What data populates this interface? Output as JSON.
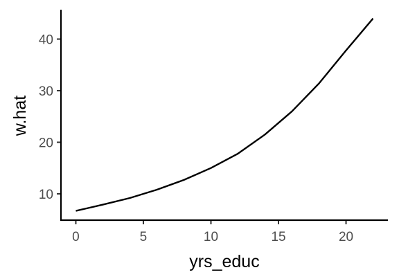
{
  "chart_data": {
    "type": "line",
    "title": "",
    "xlabel": "yrs_educ",
    "ylabel": "w.hat",
    "xlim": [
      -1.1,
      23.1
    ],
    "ylim": [
      4.9,
      45.7
    ],
    "x_ticks": [
      0,
      5,
      10,
      15,
      20
    ],
    "y_ticks": [
      10,
      20,
      30,
      40
    ],
    "grid": false,
    "legend": "none",
    "series": [
      {
        "x": [
          0,
          2,
          4,
          6,
          8,
          10,
          12,
          14,
          16,
          18,
          20,
          22
        ],
        "y": [
          6.7,
          7.9,
          9.2,
          10.8,
          12.7,
          15.0,
          17.8,
          21.5,
          26.0,
          31.4,
          37.8,
          44.0
        ]
      }
    ]
  }
}
